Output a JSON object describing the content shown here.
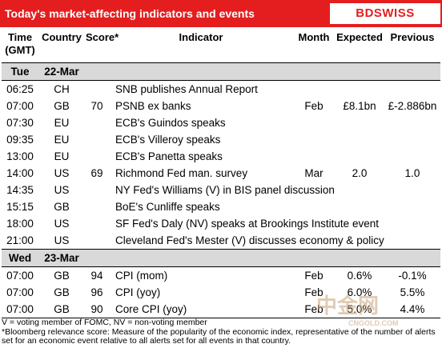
{
  "header": {
    "title": "Today's market-affecting indicators and events",
    "logo": "BDSWISS"
  },
  "table": {
    "columns": [
      "Time (GMT)",
      "Country",
      "Score*",
      "Indicator",
      "Month",
      "Expected",
      "Previous"
    ],
    "days": [
      {
        "day": "Tue",
        "date": "22-Mar",
        "rows": [
          {
            "time": "06:25",
            "country": "CH",
            "indicator": "SNB publishes Annual Report"
          },
          {
            "time": "07:00",
            "country": "GB",
            "score": "70",
            "indicator": "PSNB ex banks",
            "month": "Feb",
            "expected": "£8.1bn",
            "previous": "£-2.886bn"
          },
          {
            "time": "07:30",
            "country": "EU",
            "indicator": "ECB's Guindos speaks"
          },
          {
            "time": "09:35",
            "country": "EU",
            "indicator": "ECB's Villeroy speaks"
          },
          {
            "time": "13:00",
            "country": "EU",
            "indicator": "ECB's Panetta speaks"
          },
          {
            "time": "14:00",
            "country": "US",
            "score": "69",
            "indicator": "Richmond Fed man. survey",
            "month": "Mar",
            "expected": "2.0",
            "previous": "1.0"
          },
          {
            "time": "14:35",
            "country": "US",
            "indicator": "NY Fed's Williams (V) in BIS panel discussion"
          },
          {
            "time": "15:15",
            "country": "GB",
            "indicator": "BoE's Cunliffe speaks"
          },
          {
            "time": "18:00",
            "country": "US",
            "indicator": "SF Fed's Daly (NV) speaks at Brookings Institute event"
          },
          {
            "time": "21:00",
            "country": "US",
            "indicator": "Cleveland Fed's Mester (V) discusses economy & policy"
          }
        ]
      },
      {
        "day": "Wed",
        "date": "23-Mar",
        "rows": [
          {
            "time": "07:00",
            "country": "GB",
            "score": "94",
            "indicator": "CPI (mom)",
            "month": "Feb",
            "expected": "0.6%",
            "previous": "-0.1%"
          },
          {
            "time": "07:00",
            "country": "GB",
            "score": "96",
            "indicator": "CPI (yoy)",
            "month": "Feb",
            "expected": "6.0%",
            "previous": "5.5%"
          },
          {
            "time": "07:00",
            "country": "GB",
            "score": "90",
            "indicator": "Core CPI (yoy)",
            "month": "Feb",
            "expected": "5.0%",
            "previous": "4.4%"
          }
        ]
      }
    ]
  },
  "footnotes": [
    "V = voting member of FOMC, NV = non-voting member",
    "*Bloomberg relevance score:  Measure of the popularity of the economic index, representative of the number of alerts set for an economic event relative to all alerts set for all events in that country."
  ],
  "watermark": {
    "brand": "中金网",
    "site": "CNGOLD.COM"
  }
}
